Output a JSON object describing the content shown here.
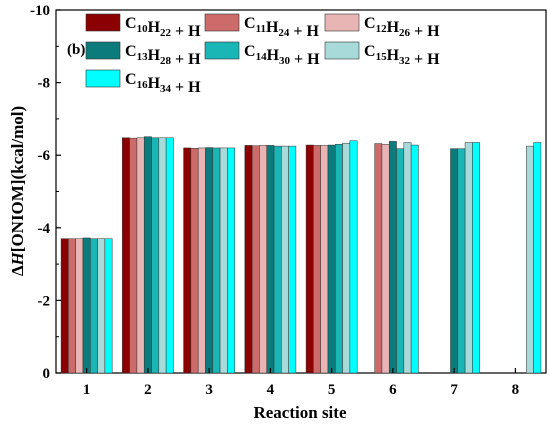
{
  "chart_data": {
    "type": "bar",
    "panel_label": "(b)",
    "xlabel": "Reaction site",
    "ylabel": "ΔH[ONIOM](kcal/mol)",
    "ylim": [
      0,
      -10
    ],
    "y_inverted": true,
    "yticks": [
      0,
      -2,
      -4,
      -6,
      -8,
      -10
    ],
    "ytick_labels": [
      "0",
      "-2",
      "-4",
      "-6",
      "-8",
      "-10"
    ],
    "categories": [
      "1",
      "2",
      "3",
      "4",
      "5",
      "6",
      "7",
      "8"
    ],
    "grid": false,
    "legend_position": "top",
    "series": [
      {
        "name": "C10H22 + H",
        "label_parts": [
          [
            "C",
            ""
          ],
          [
            "10",
            "sub"
          ],
          [
            "H",
            ""
          ],
          [
            "22",
            "sub"
          ],
          [
            " + H",
            ""
          ]
        ],
        "color": "#8b0000",
        "values": [
          -3.7,
          -6.48,
          -6.2,
          -6.27,
          -6.28,
          null,
          null,
          null
        ]
      },
      {
        "name": "C11H24 + H",
        "label_parts": [
          [
            "C",
            ""
          ],
          [
            "11",
            "sub"
          ],
          [
            "H",
            ""
          ],
          [
            "24",
            "sub"
          ],
          [
            " + H",
            ""
          ]
        ],
        "color": "#cd6b6b",
        "values": [
          -3.7,
          -6.47,
          -6.19,
          -6.26,
          -6.27,
          -6.32,
          null,
          null
        ]
      },
      {
        "name": "C12H26 + H",
        "label_parts": [
          [
            "C",
            ""
          ],
          [
            "12",
            "sub"
          ],
          [
            "H",
            ""
          ],
          [
            "26",
            "sub"
          ],
          [
            " + H",
            ""
          ]
        ],
        "color": "#e8b4b4",
        "values": [
          -3.7,
          -6.48,
          -6.2,
          -6.27,
          -6.27,
          -6.3,
          null,
          null
        ]
      },
      {
        "name": "C13H28 + H",
        "label_parts": [
          [
            "C",
            ""
          ],
          [
            "13",
            "sub"
          ],
          [
            "H",
            ""
          ],
          [
            "28",
            "sub"
          ],
          [
            " + H",
            ""
          ]
        ],
        "color": "#0b7b7b",
        "values": [
          -3.72,
          -6.51,
          -6.21,
          -6.27,
          -6.28,
          -6.38,
          -6.18,
          null
        ]
      },
      {
        "name": "C14H30 + H",
        "label_parts": [
          [
            "C",
            ""
          ],
          [
            "14",
            "sub"
          ],
          [
            "H",
            ""
          ],
          [
            "30",
            "sub"
          ],
          [
            " + H",
            ""
          ]
        ],
        "color": "#1ab5b5",
        "values": [
          -3.7,
          -6.48,
          -6.2,
          -6.25,
          -6.3,
          -6.18,
          -6.18,
          null
        ]
      },
      {
        "name": "C15H32 + H",
        "label_parts": [
          [
            "C",
            ""
          ],
          [
            "15",
            "sub"
          ],
          [
            "H",
            ""
          ],
          [
            "32",
            "sub"
          ],
          [
            " + H",
            ""
          ]
        ],
        "color": "#a8dada",
        "values": [
          -3.7,
          -6.48,
          -6.2,
          -6.25,
          -6.33,
          -6.35,
          -6.35,
          -6.25
        ]
      },
      {
        "name": "C16H34 + H",
        "label_parts": [
          [
            "C",
            ""
          ],
          [
            "16",
            "sub"
          ],
          [
            "H",
            ""
          ],
          [
            "34",
            "sub"
          ],
          [
            " + H",
            ""
          ]
        ],
        "color": "#00ffff",
        "values": [
          -3.7,
          -6.48,
          -6.2,
          -6.25,
          -6.4,
          -6.28,
          -6.35,
          -6.35
        ]
      }
    ]
  }
}
